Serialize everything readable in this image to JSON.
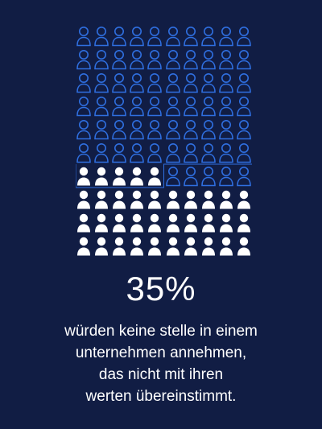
{
  "infographic": {
    "percent_label": "35%",
    "caption_lines": [
      "würden keine stelle in einem",
      "unternehmen annehmen,",
      "das nicht mit ihren",
      "werten übereinstimmt."
    ]
  },
  "icon_grid": {
    "columns": 10,
    "rows": 10,
    "total": 100,
    "highlighted": 35,
    "icon": "person-icon",
    "highlight_color": "#ffffff",
    "outline_color": "#2f6fe0",
    "background_color": "#111d44"
  }
}
